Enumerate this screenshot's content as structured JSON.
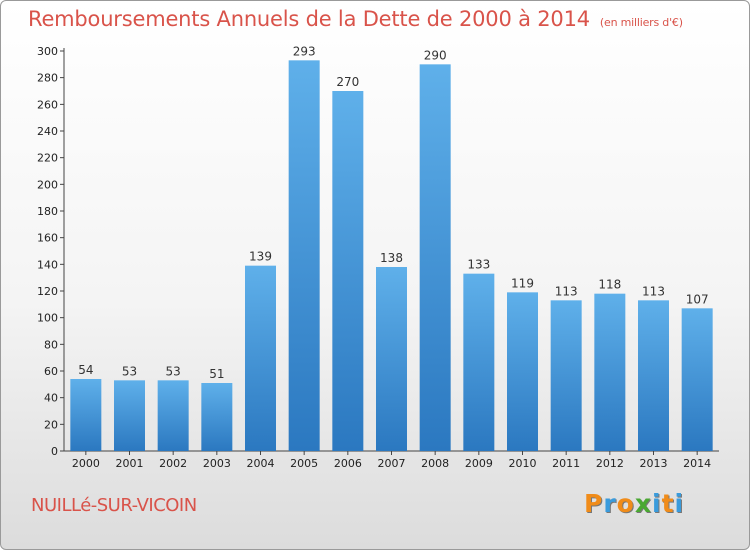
{
  "header": {
    "title": "Remboursements Annuels de la Dette de 2000 à 2014",
    "unit": "(en milliers d'€)"
  },
  "footer": {
    "commune": "NUILLé-SUR-VICOIN",
    "logo": [
      "P",
      "r",
      "o",
      "x",
      "i",
      "t",
      "i"
    ]
  },
  "colors": {
    "title": "#d9534a",
    "bar_top": "#5fb0ea",
    "bar_bottom": "#2b78c0",
    "logo": [
      "#f08c1a",
      "#3a9bdc",
      "#f08c1a",
      "#4aa832",
      "#3a9bdc",
      "#f08c1a",
      "#3a9bdc"
    ]
  },
  "chart_data": {
    "type": "bar",
    "title": "Remboursements Annuels de la Dette de 2000 à 2014",
    "categories": [
      "2000",
      "2001",
      "2002",
      "2003",
      "2004",
      "2005",
      "2006",
      "2007",
      "2008",
      "2009",
      "2010",
      "2011",
      "2012",
      "2013",
      "2014"
    ],
    "values": [
      54,
      53,
      53,
      51,
      139,
      293,
      270,
      138,
      290,
      133,
      119,
      113,
      118,
      113,
      107
    ],
    "ylim": [
      0,
      300
    ],
    "yticks": [
      0,
      20,
      40,
      60,
      80,
      100,
      120,
      140,
      160,
      180,
      200,
      220,
      240,
      260,
      280,
      300
    ],
    "grid": false
  }
}
